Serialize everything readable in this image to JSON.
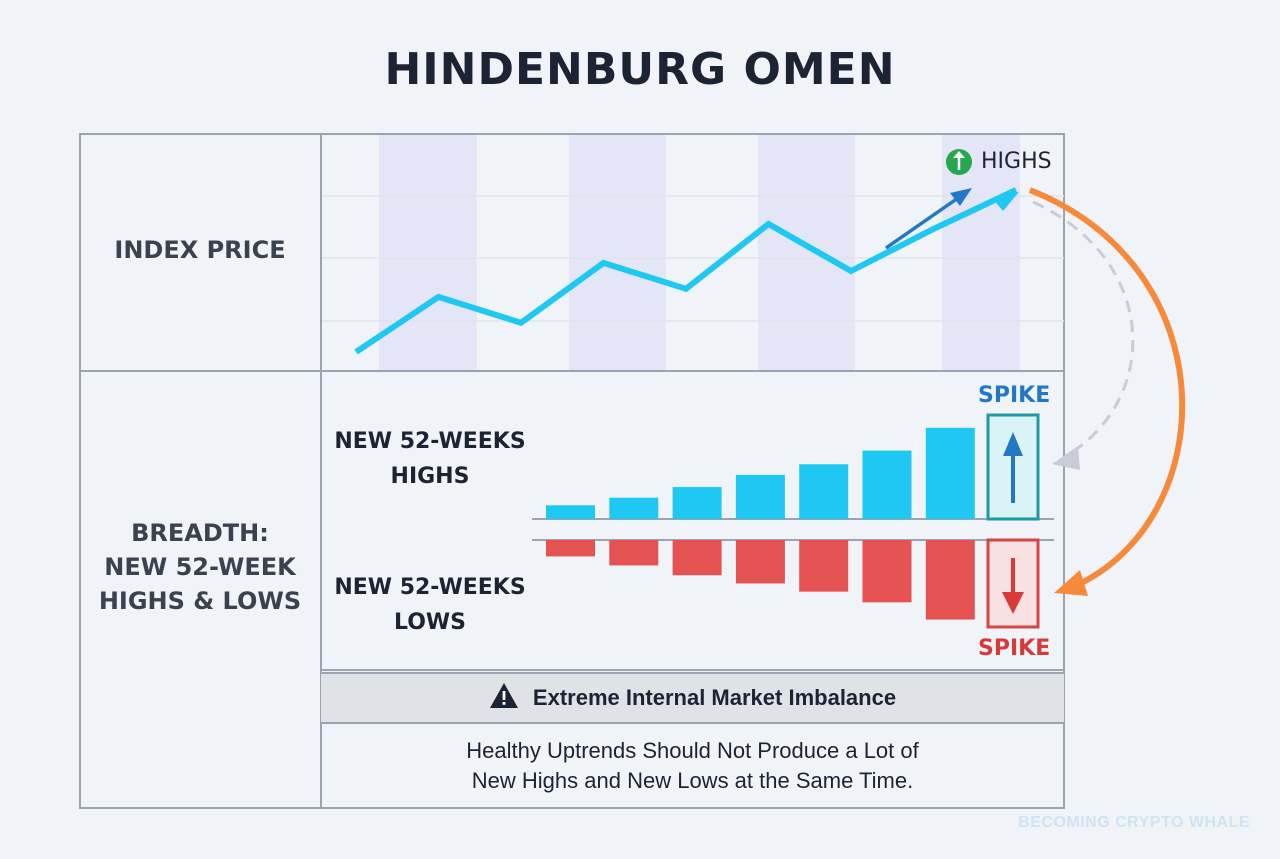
{
  "title": "HINDENBURG OMEN",
  "rows": {
    "index_price": "INDEX PRICE",
    "breadth_line1": "BREADTH:",
    "breadth_line2": "NEW 52-WEEK",
    "breadth_line3": "HIGHS & LOWS"
  },
  "labels": {
    "highs_line1": "NEW 52-WEEKS",
    "highs_line2": "HIGHS",
    "lows_line1": "NEW 52-WEEKS",
    "lows_line2": "LOWS",
    "highs_badge": "HIGHS",
    "spike_up": "SPIKE",
    "spike_down": "SPIKE"
  },
  "banner": "Extreme Internal Market Imbalance",
  "note_line1": "Healthy Uptrends Should Not Produce a Lot of",
  "note_line2": "New Highs and New Lows at the Same Time.",
  "watermark": "BECOMING CRYPTO WHALE",
  "colors": {
    "line": "#1ec8f2",
    "highs_bar": "#1ec8f2",
    "lows_bar": "#e45252",
    "orange": "#f7893b",
    "dashed": "#c7ccd6",
    "up_arrow": "#2278c4",
    "down_arrow": "#d83a3a",
    "badge_green": "#27a850"
  },
  "chart_data": {
    "type": "line",
    "title": "INDEX PRICE",
    "x": [
      0,
      1,
      2,
      3,
      4,
      5,
      6,
      7,
      8
    ],
    "values": [
      0.0,
      0.34,
      0.18,
      0.55,
      0.39,
      0.79,
      0.5,
      0.76,
      1.0
    ],
    "ylim": [
      0,
      1
    ],
    "bars": {
      "highs": [
        0.09,
        0.14,
        0.21,
        0.29,
        0.36,
        0.45,
        0.6
      ],
      "lows": [
        0.2,
        0.31,
        0.43,
        0.53,
        0.63,
        0.76,
        0.97
      ],
      "ylim": [
        0,
        1
      ]
    }
  }
}
